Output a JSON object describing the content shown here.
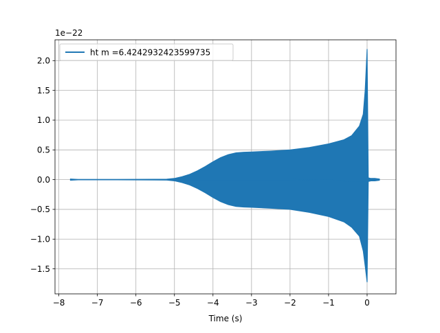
{
  "chart_data": {
    "type": "area",
    "title": "",
    "xlabel": "Time (s)",
    "ylabel": "",
    "y_offset_text": "1e−22",
    "xlim": [
      -8.1,
      0.75
    ],
    "ylim": [
      -1.92,
      2.35
    ],
    "x_ticks": [
      -8,
      -7,
      -6,
      -5,
      -4,
      -3,
      -2,
      -1,
      0
    ],
    "x_tick_labels": [
      "−8",
      "−7",
      "−6",
      "−5",
      "−4",
      "−3",
      "−2",
      "−1",
      "0"
    ],
    "y_ticks": [
      -1.5,
      -1.0,
      -0.5,
      0.0,
      0.5,
      1.0,
      1.5,
      2.0
    ],
    "y_tick_labels": [
      "−1.5",
      "−1.0",
      "−0.5",
      "0.0",
      "0.5",
      "1.0",
      "1.5",
      "2.0"
    ],
    "grid": true,
    "legend_position": "top-left",
    "series": [
      {
        "name": "ht m =6.4242932423599735",
        "color": "#1f77b4",
        "x": [
          -7.7,
          -7.5,
          -7.0,
          -6.5,
          -6.0,
          -5.5,
          -5.2,
          -5.0,
          -4.8,
          -4.6,
          -4.4,
          -4.2,
          -4.0,
          -3.8,
          -3.6,
          -3.4,
          -3.2,
          -3.0,
          -2.5,
          -2.0,
          -1.5,
          -1.0,
          -0.6,
          -0.4,
          -0.2,
          -0.1,
          -0.05,
          0.0,
          0.03,
          0.1,
          0.2,
          0.32
        ],
        "upper": [
          0.01,
          0.003,
          0.003,
          0.003,
          0.004,
          0.006,
          0.008,
          0.02,
          0.05,
          0.09,
          0.15,
          0.22,
          0.3,
          0.37,
          0.42,
          0.45,
          0.46,
          0.465,
          0.48,
          0.5,
          0.54,
          0.6,
          0.67,
          0.74,
          0.9,
          1.1,
          1.5,
          2.19,
          0.03,
          0.02,
          0.02,
          0.01
        ],
        "lower": [
          -0.01,
          -0.003,
          -0.003,
          -0.003,
          -0.004,
          -0.006,
          -0.008,
          -0.02,
          -0.05,
          -0.09,
          -0.15,
          -0.22,
          -0.3,
          -0.37,
          -0.42,
          -0.45,
          -0.46,
          -0.465,
          -0.48,
          -0.5,
          -0.55,
          -0.62,
          -0.71,
          -0.8,
          -0.95,
          -1.2,
          -1.45,
          -1.72,
          -0.03,
          -0.02,
          -0.02,
          -0.01
        ]
      }
    ]
  }
}
